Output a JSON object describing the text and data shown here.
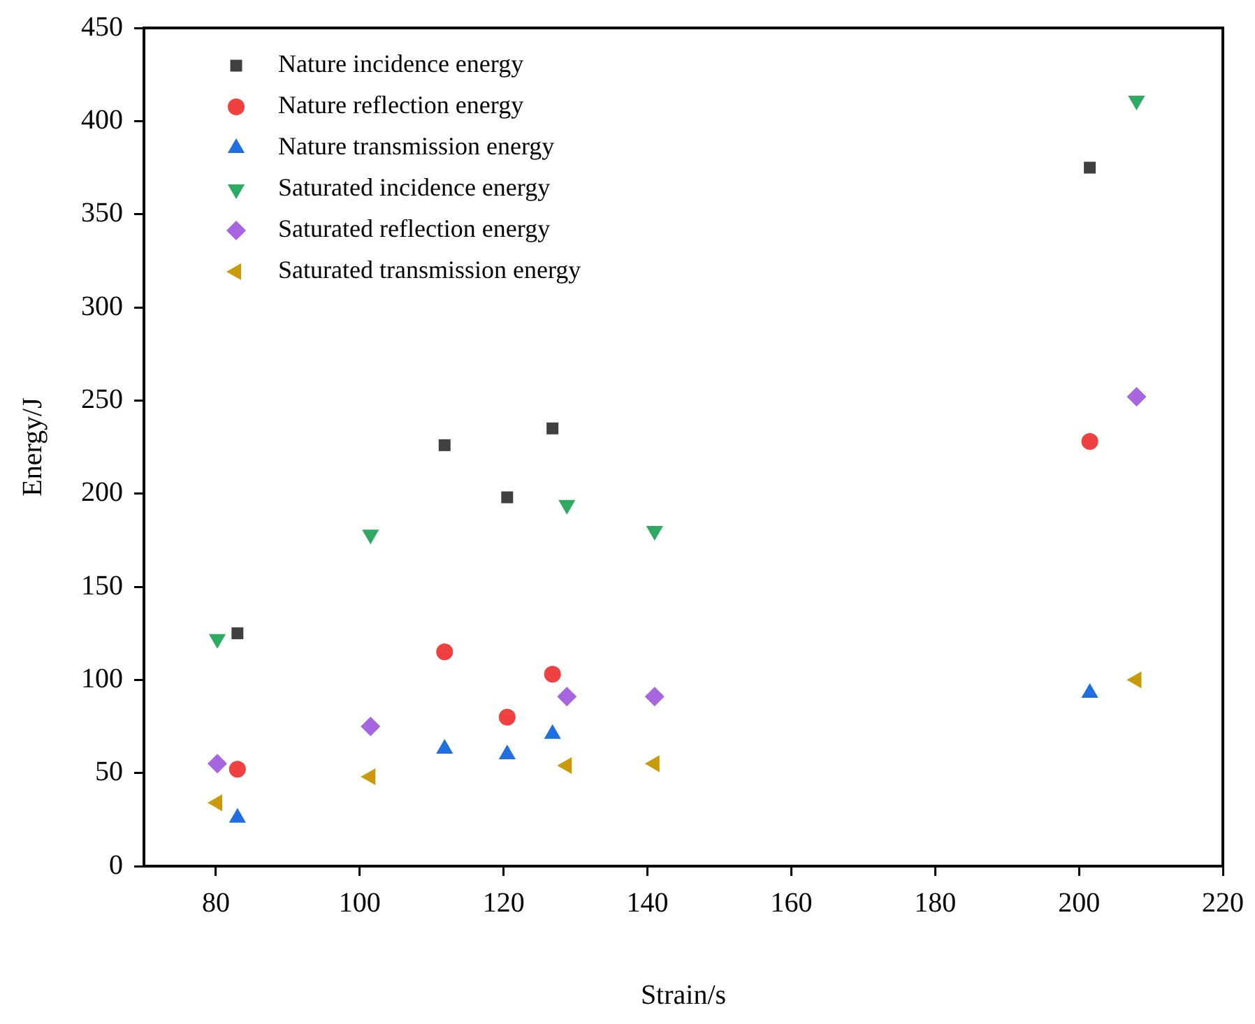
{
  "chart_data": {
    "type": "scatter",
    "xlabel": "Strain/s",
    "ylabel": "Energy/J",
    "xlim": [
      70,
      220
    ],
    "xticks": [
      80,
      100,
      120,
      140,
      160,
      180,
      200,
      220
    ],
    "ylim": [
      0,
      450
    ],
    "yticks": [
      0,
      50,
      100,
      150,
      200,
      250,
      300,
      350,
      400,
      450
    ],
    "grid": false,
    "legend": "top left",
    "series": [
      {
        "name": "Nature incidence energy",
        "color": "#404040",
        "marker": "square",
        "x": [
          83,
          111.8,
          120.5,
          126.8,
          201.5
        ],
        "values": [
          125,
          226,
          198,
          235,
          375
        ]
      },
      {
        "name": "Nature reflection energy",
        "color": "#f04040",
        "marker": "circle",
        "x": [
          83,
          111.8,
          120.5,
          126.8,
          201.5
        ],
        "values": [
          52,
          115,
          80,
          103,
          228
        ]
      },
      {
        "name": "Nature transmission energy",
        "color": "#1f6fe0",
        "marker": "triangle",
        "x": [
          83,
          111.8,
          120.5,
          126.8,
          201.5
        ],
        "values": [
          26,
          63,
          60,
          71,
          93
        ]
      },
      {
        "name": "Saturated incidence energy",
        "color": "#2eaa62",
        "marker": "triangle-down",
        "x": [
          80.2,
          101.5,
          128.8,
          141,
          208
        ],
        "values": [
          122,
          178,
          194,
          180,
          411
        ]
      },
      {
        "name": "Saturated reflection energy",
        "color": "#a865e0",
        "marker": "diamond",
        "x": [
          80.2,
          101.5,
          128.8,
          141,
          208
        ],
        "values": [
          55,
          75,
          91,
          91,
          252
        ]
      },
      {
        "name": "Saturated transmission energy",
        "color": "#c99a0a",
        "marker": "triangle-left",
        "x": [
          80.2,
          101.5,
          128.8,
          141,
          208
        ],
        "values": [
          34,
          48,
          54,
          55,
          100
        ]
      }
    ]
  }
}
